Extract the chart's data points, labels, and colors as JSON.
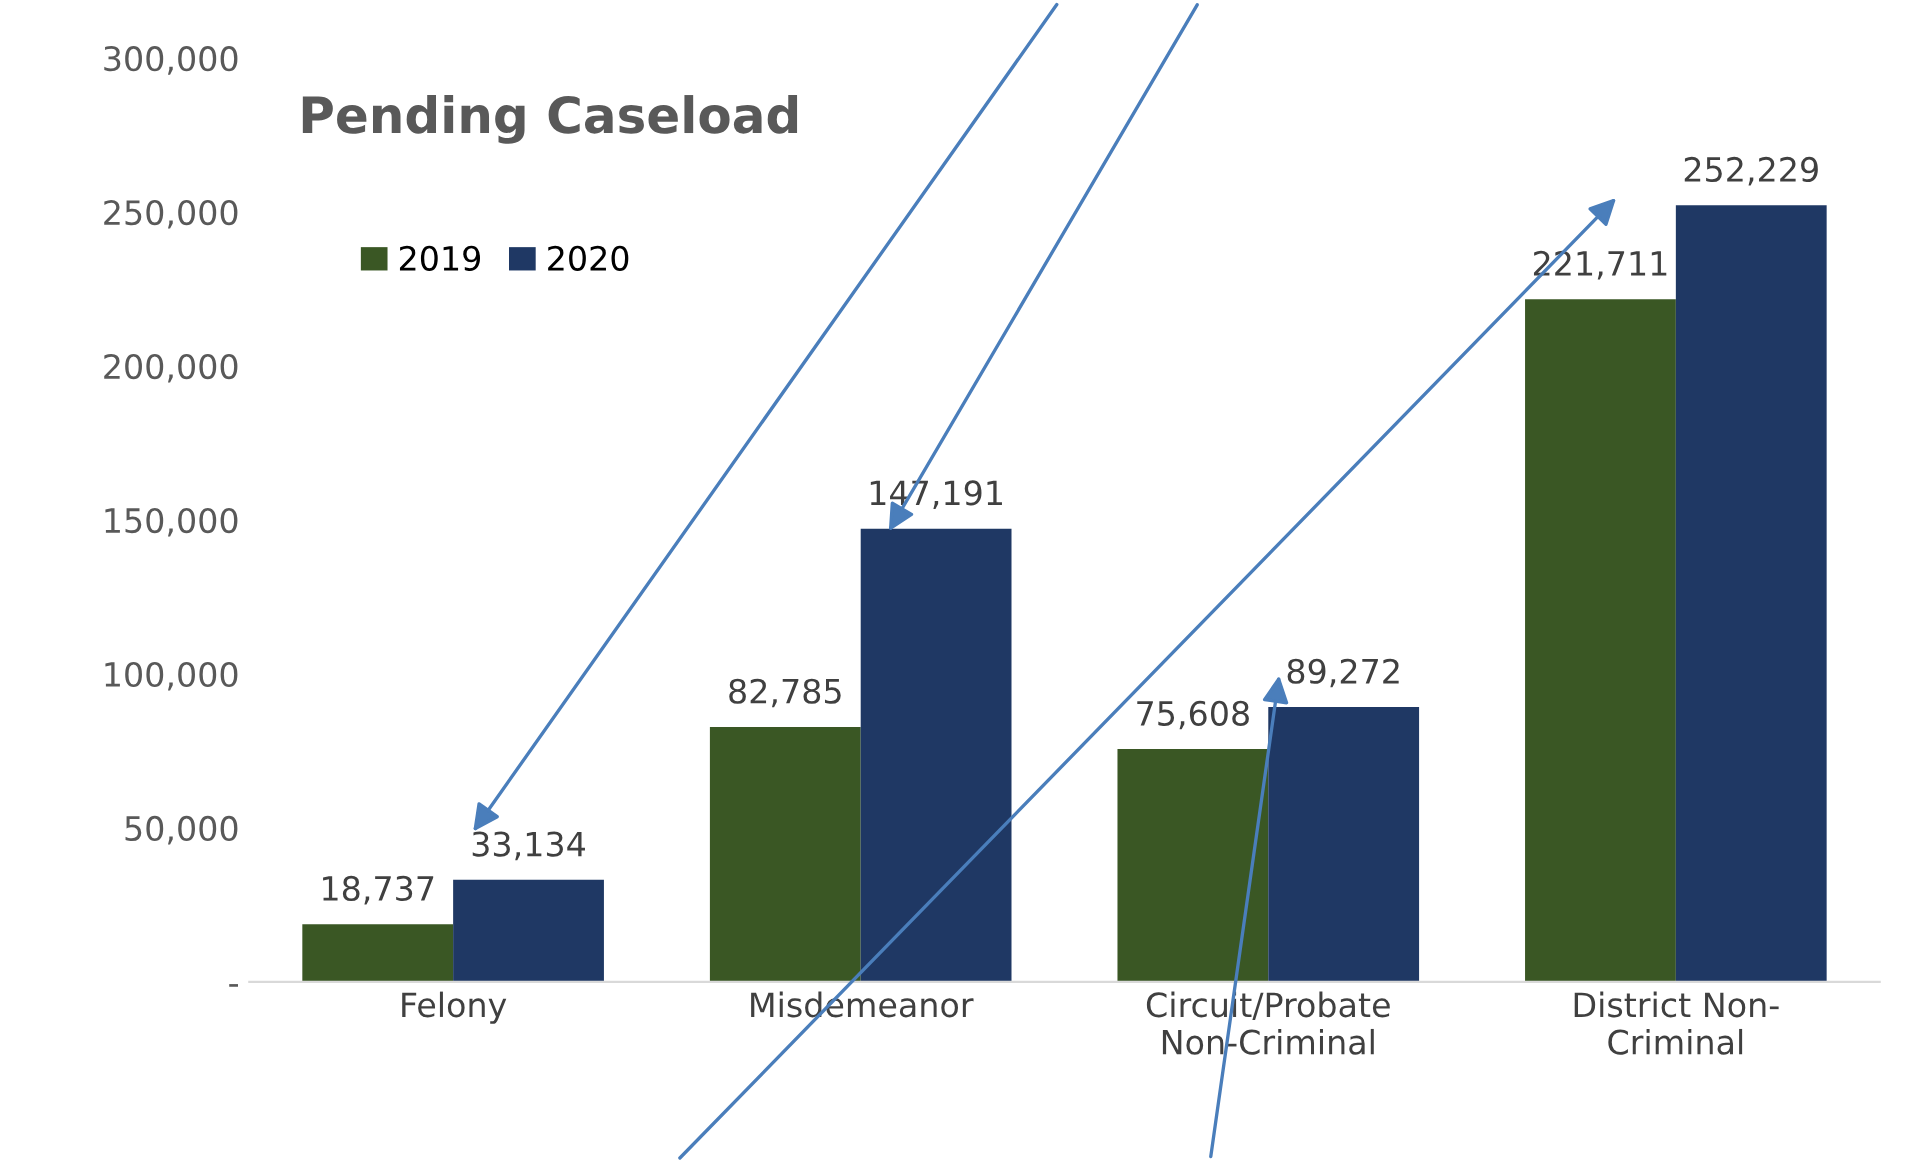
{
  "chart_data": {
    "type": "bar",
    "title": "Pending Caseload",
    "categories": [
      "Felony",
      "Misdemeanor",
      "Circuit/Probate\nNon-Criminal",
      "District Non-\nCriminal"
    ],
    "series": [
      {
        "name": "2019",
        "color": "#3a5724",
        "values": [
          18737,
          82785,
          75608,
          221711
        ],
        "value_labels": [
          "18,737",
          "82,785",
          "75,608",
          "221,711"
        ]
      },
      {
        "name": "2020",
        "color": "#1f3864",
        "values": [
          33134,
          147191,
          89272,
          252229
        ],
        "value_labels": [
          "33,134",
          "147,191",
          "89,272",
          "252,229"
        ]
      }
    ],
    "ylim": [
      0,
      300000
    ],
    "yticks": [
      {
        "value": 0,
        "label": "-"
      },
      {
        "value": 50000,
        "label": "50,000"
      },
      {
        "value": 100000,
        "label": "100,000"
      },
      {
        "value": 150000,
        "label": "150,000"
      },
      {
        "value": 200000,
        "label": "200,000"
      },
      {
        "value": 250000,
        "label": "250,000"
      },
      {
        "value": 300000,
        "label": "300,000"
      }
    ],
    "grid": false,
    "legend": "top left"
  }
}
